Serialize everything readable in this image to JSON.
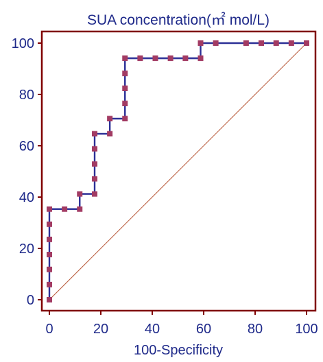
{
  "chart_data": {
    "type": "line",
    "title": "SUA concentration(㎡ mol/L)",
    "xlabel": "100-Specificity",
    "ylabel": "",
    "xlim": [
      0,
      100
    ],
    "ylim": [
      0,
      100
    ],
    "xticks": [
      0,
      20,
      40,
      60,
      80,
      100
    ],
    "yticks": [
      0,
      20,
      40,
      60,
      80,
      100
    ],
    "x_tick_labels": [
      "0",
      "20",
      "40",
      "60",
      "80",
      "100"
    ],
    "y_tick_labels": [
      "0",
      "20",
      "40",
      "60",
      "80",
      "100"
    ],
    "grid": false,
    "legend": "none",
    "series": [
      {
        "style": "step-with-square-markers",
        "points": [
          [
            0,
            0
          ],
          [
            0,
            5.9
          ],
          [
            0,
            11.8
          ],
          [
            0,
            17.6
          ],
          [
            0,
            23.5
          ],
          [
            0,
            29.4
          ],
          [
            0,
            35.3
          ],
          [
            5.9,
            35.3
          ],
          [
            11.8,
            35.3
          ],
          [
            11.8,
            41.2
          ],
          [
            17.6,
            41.2
          ],
          [
            17.6,
            47.1
          ],
          [
            17.6,
            52.9
          ],
          [
            17.6,
            58.8
          ],
          [
            17.6,
            64.7
          ],
          [
            23.5,
            64.7
          ],
          [
            23.5,
            70.6
          ],
          [
            29.4,
            70.6
          ],
          [
            29.4,
            76.5
          ],
          [
            29.4,
            82.4
          ],
          [
            29.4,
            88.2
          ],
          [
            29.4,
            94.1
          ],
          [
            35.3,
            94.1
          ],
          [
            41.2,
            94.1
          ],
          [
            47.1,
            94.1
          ],
          [
            52.9,
            94.1
          ],
          [
            58.8,
            94.1
          ],
          [
            58.8,
            100
          ],
          [
            64.7,
            100
          ],
          [
            76.5,
            100
          ],
          [
            82.4,
            100
          ],
          [
            88.2,
            100
          ],
          [
            94.1,
            100
          ],
          [
            100,
            100
          ]
        ]
      },
      {
        "style": "reference-diagonal",
        "points": [
          [
            0,
            0
          ],
          [
            100,
            100
          ]
        ]
      }
    ]
  },
  "colors": {
    "frame": "#800000",
    "roc_line": "#2b2f96",
    "marker": "#a23b63",
    "diagonal": "#b85a3a",
    "text": "#1f2a8a",
    "background": "#ffffff"
  }
}
